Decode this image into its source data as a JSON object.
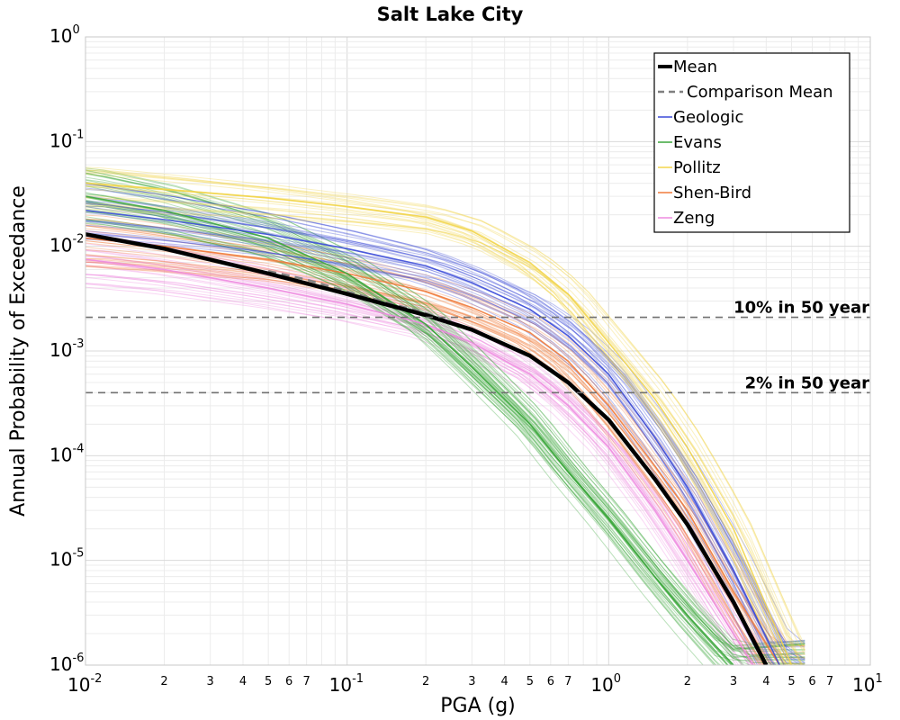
{
  "chart_data": {
    "type": "line",
    "title": "Salt Lake City",
    "xlabel": "PGA (g)",
    "ylabel": "Annual Probability of Exceedance",
    "x_scale": "log",
    "y_scale": "log",
    "xlim": [
      0.01,
      10
    ],
    "ylim": [
      1e-06,
      1
    ],
    "grid": true,
    "x_major_ticks": [
      {
        "value": 0.01,
        "base": "10",
        "exp": "-2"
      },
      {
        "value": 0.1,
        "base": "10",
        "exp": "-1"
      },
      {
        "value": 1,
        "base": "10",
        "exp": "0"
      },
      {
        "value": 10,
        "base": "10",
        "exp": "1"
      }
    ],
    "x_minor_tick_labels": [
      "2",
      "3",
      "4",
      "5",
      "6",
      "7"
    ],
    "y_major_ticks": [
      {
        "value": 1,
        "base": "10",
        "exp": "0"
      },
      {
        "value": 0.1,
        "base": "10",
        "exp": "-1"
      },
      {
        "value": 0.01,
        "base": "10",
        "exp": "-2"
      },
      {
        "value": 0.001,
        "base": "10",
        "exp": "-3"
      },
      {
        "value": 0.0001,
        "base": "10",
        "exp": "-4"
      },
      {
        "value": 1e-05,
        "base": "10",
        "exp": "-5"
      },
      {
        "value": 1e-06,
        "base": "10",
        "exp": "-6"
      }
    ],
    "legend_position": "top-right",
    "legend": [
      {
        "label": "Mean",
        "color": "#000000",
        "style": "solid-thick"
      },
      {
        "label": "Comparison Mean",
        "color": "#808080",
        "style": "dashed"
      },
      {
        "label": "Geologic",
        "color": "#3b4bd8",
        "style": "solid"
      },
      {
        "label": "Evans",
        "color": "#3aa63a",
        "style": "solid"
      },
      {
        "label": "Pollitz",
        "color": "#f2d54a",
        "style": "solid"
      },
      {
        "label": "Shen-Bird",
        "color": "#f07a3a",
        "style": "solid"
      },
      {
        "label": "Zeng",
        "color": "#ee8ae0",
        "style": "solid"
      }
    ],
    "reference_lines": [
      {
        "label": "10% in 50 year",
        "y": 0.0021
      },
      {
        "label": "2% in 50 year",
        "y": 0.0004
      }
    ],
    "series": [
      {
        "name": "Mean",
        "x": [
          0.01,
          0.02,
          0.05,
          0.1,
          0.2,
          0.3,
          0.5,
          0.7,
          1,
          1.5,
          2,
          3,
          4
        ],
        "y": [
          0.013,
          0.0095,
          0.0055,
          0.0035,
          0.0022,
          0.0016,
          0.0009,
          0.0005,
          0.00022,
          6e-05,
          2.2e-05,
          4e-06,
          1e-06
        ]
      },
      {
        "name": "Comparison Mean",
        "x": [
          0.05,
          0.07,
          0.1,
          0.15,
          0.2,
          0.3,
          0.5,
          0.7,
          1,
          1.5,
          2,
          3,
          4
        ],
        "y": [
          0.0058,
          0.0048,
          0.0037,
          0.0028,
          0.0023,
          0.0016,
          0.0009,
          0.0005,
          0.00022,
          6e-05,
          2.2e-05,
          4e-06,
          1e-06
        ]
      },
      {
        "name": "Geologic",
        "x": [
          0.01,
          0.02,
          0.05,
          0.1,
          0.2,
          0.3,
          0.5,
          0.7,
          1,
          1.5,
          2,
          3,
          4.5
        ],
        "y": [
          0.022,
          0.018,
          0.013,
          0.0095,
          0.0065,
          0.0045,
          0.0025,
          0.0014,
          0.0006,
          0.00015,
          5e-05,
          8e-06,
          1e-06
        ]
      },
      {
        "name": "Evans",
        "x": [
          0.01,
          0.02,
          0.05,
          0.1,
          0.2,
          0.3,
          0.5,
          0.7,
          1,
          1.5,
          2,
          3
        ],
        "y": [
          0.03,
          0.022,
          0.012,
          0.0055,
          0.0018,
          0.0007,
          0.0002,
          7e-05,
          2.5e-05,
          7e-06,
          3e-06,
          1e-06
        ]
      },
      {
        "name": "Pollitz",
        "x": [
          0.01,
          0.02,
          0.05,
          0.1,
          0.2,
          0.3,
          0.5,
          0.7,
          1,
          1.5,
          2,
          3,
          5
        ],
        "y": [
          0.04,
          0.035,
          0.029,
          0.024,
          0.019,
          0.014,
          0.007,
          0.0035,
          0.0012,
          0.00035,
          0.00012,
          2e-05,
          1e-06
        ]
      },
      {
        "name": "Shen-Bird",
        "x": [
          0.01,
          0.02,
          0.05,
          0.1,
          0.2,
          0.3,
          0.5,
          0.7,
          1,
          1.5,
          2,
          3,
          4.5
        ],
        "y": [
          0.012,
          0.01,
          0.0075,
          0.0055,
          0.0037,
          0.0026,
          0.0015,
          0.0008,
          0.0003,
          8e-05,
          3e-05,
          5e-06,
          1e-06
        ]
      },
      {
        "name": "Zeng",
        "x": [
          0.01,
          0.02,
          0.05,
          0.1,
          0.2,
          0.3,
          0.5,
          0.7,
          1,
          1.5,
          2,
          3,
          4.5
        ],
        "y": [
          0.0075,
          0.006,
          0.004,
          0.0028,
          0.0018,
          0.0012,
          0.0006,
          0.0003,
          0.00012,
          3e-05,
          1e-05,
          2e-06,
          4e-07
        ]
      }
    ]
  }
}
